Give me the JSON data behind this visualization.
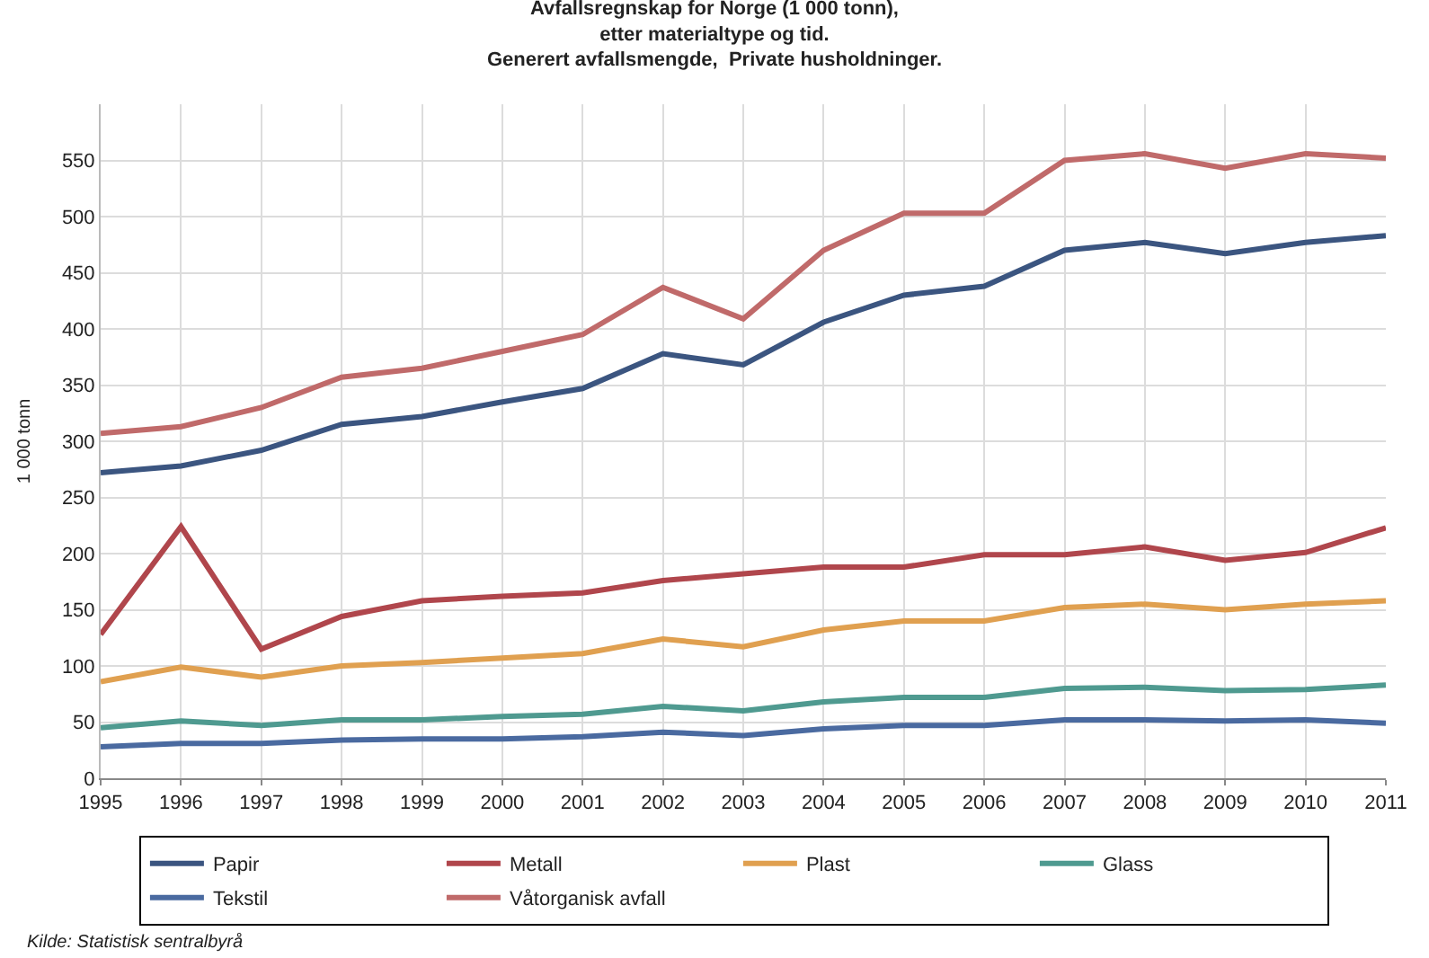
{
  "chart_data": {
    "type": "line",
    "title": "Avfallsregnskap for Norge (1 000 tonn),\netter materialtype og tid.\nGenerert avfallsmengde,  Private husholdninger.",
    "ylabel": "1 000 tonn",
    "x": [
      1995,
      1996,
      1997,
      1998,
      1999,
      2000,
      2001,
      2002,
      2003,
      2004,
      2005,
      2006,
      2007,
      2008,
      2009,
      2010,
      2011
    ],
    "xlim": [
      1995,
      2011
    ],
    "xticks": [
      1995,
      1996,
      1997,
      1998,
      1999,
      2000,
      2001,
      2002,
      2003,
      2004,
      2005,
      2006,
      2007,
      2008,
      2009,
      2010,
      2011
    ],
    "ylim": [
      0,
      600
    ],
    "yticks": [
      0,
      50,
      100,
      150,
      200,
      250,
      300,
      350,
      400,
      450,
      500,
      550
    ],
    "grid": true,
    "legend": "bottom",
    "marker": "none",
    "line_style": "solid",
    "annotations": [
      "Kilde: Statistisk sentralbyrå"
    ],
    "series": [
      {
        "name": "Papir",
        "color": "#3b5580",
        "values": [
          272,
          278,
          292,
          315,
          322,
          335,
          347,
          378,
          368,
          406,
          430,
          438,
          470,
          477,
          467,
          477,
          483
        ]
      },
      {
        "name": "Metall",
        "color": "#b0464c",
        "values": [
          128,
          224,
          115,
          144,
          158,
          162,
          165,
          176,
          182,
          188,
          188,
          199,
          199,
          206,
          194,
          201,
          223
        ]
      },
      {
        "name": "Plast",
        "color": "#e0a050",
        "values": [
          86,
          99,
          90,
          100,
          103,
          107,
          111,
          124,
          117,
          132,
          140,
          140,
          152,
          155,
          150,
          155,
          158
        ]
      },
      {
        "name": "Glass",
        "color": "#4f9a90",
        "values": [
          45,
          51,
          47,
          52,
          52,
          55,
          57,
          64,
          60,
          68,
          72,
          72,
          80,
          81,
          78,
          79,
          83
        ]
      },
      {
        "name": "Tekstil",
        "color": "#4a6aa0",
        "values": [
          28,
          31,
          31,
          34,
          35,
          35,
          37,
          41,
          38,
          44,
          47,
          47,
          52,
          52,
          51,
          52,
          49
        ]
      },
      {
        "name": "Våtorganisk avfall",
        "color": "#c06a6a",
        "values": [
          307,
          313,
          330,
          357,
          365,
          380,
          395,
          437,
          409,
          470,
          503,
          503,
          550,
          556,
          543,
          556,
          552
        ]
      }
    ]
  }
}
